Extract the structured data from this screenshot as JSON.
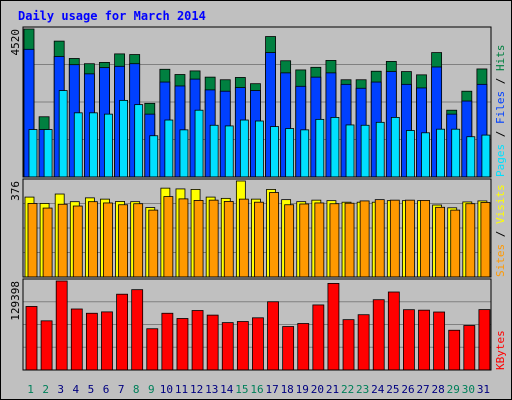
{
  "chart_data": [
    {
      "type": "bar",
      "title": "Daily usage for March 2014",
      "categories": [
        "1",
        "2",
        "3",
        "4",
        "5",
        "6",
        "7",
        "8",
        "9",
        "10",
        "11",
        "12",
        "13",
        "14",
        "15",
        "16",
        "17",
        "18",
        "19",
        "20",
        "21",
        "22",
        "23",
        "24",
        "25",
        "26",
        "27",
        "28",
        "29",
        "30",
        "31"
      ],
      "weekend_days": [
        "1",
        "2",
        "8",
        "9",
        "15",
        "16",
        "22",
        "23",
        "29",
        "30"
      ],
      "ylabel_max": "4520",
      "ylim": [
        0,
        4520
      ],
      "grid": true,
      "series": [
        {
          "name": "Hits",
          "color": "#008040",
          "values": [
            4520,
            1840,
            4150,
            3620,
            3460,
            3500,
            3760,
            3740,
            2250,
            3290,
            3130,
            3240,
            3050,
            2970,
            3040,
            2850,
            4290,
            3550,
            3270,
            3350,
            3560,
            2970,
            2970,
            3230,
            3530,
            3220,
            3120,
            3800,
            2040,
            2620,
            3300
          ]
        },
        {
          "name": "Files",
          "color": "#0040ff",
          "values": [
            3900,
            1450,
            3680,
            3430,
            3150,
            3340,
            3380,
            3460,
            1920,
            2900,
            2780,
            2990,
            2660,
            2620,
            2730,
            2640,
            3800,
            3180,
            2770,
            3050,
            3180,
            2830,
            2710,
            2900,
            3220,
            2830,
            2720,
            3360,
            1920,
            2320,
            2830
          ]
        },
        {
          "name": "Pages",
          "color": "#00e0ff",
          "values": [
            1450,
            1450,
            2640,
            1960,
            1960,
            1920,
            2340,
            2210,
            1260,
            1740,
            1440,
            2040,
            1580,
            1560,
            1740,
            1710,
            1540,
            1480,
            1440,
            1760,
            1820,
            1590,
            1580,
            1670,
            1820,
            1420,
            1350,
            1460,
            1460,
            1230,
            1280
          ]
        }
      ]
    },
    {
      "type": "bar",
      "ylabel_max": "376",
      "ylim": [
        0,
        376
      ],
      "grid": true,
      "series": [
        {
          "name": "Visits",
          "color": "#ffff00",
          "values": [
            313,
            288,
            325,
            295,
            310,
            305,
            296,
            295,
            272,
            348,
            345,
            343,
            313,
            308,
            376,
            305,
            343,
            303,
            295,
            301,
            299,
            293,
            293,
            293,
            299,
            299,
            299,
            282,
            271,
            294,
            298
          ]
        },
        {
          "name": "Sites",
          "color": "#ff9900",
          "values": [
            288,
            270,
            285,
            278,
            295,
            290,
            283,
            287,
            262,
            315,
            306,
            300,
            301,
            296,
            305,
            293,
            331,
            283,
            286,
            290,
            287,
            289,
            298,
            303,
            301,
            301,
            300,
            273,
            262,
            287,
            292
          ]
        }
      ]
    },
    {
      "type": "bar",
      "ylabel_max": "129398",
      "ylim": [
        0,
        129398
      ],
      "grid": true,
      "series": [
        {
          "name": "KBytes",
          "color": "#ff0000",
          "values": [
            92400,
            71500,
            129398,
            88700,
            82500,
            84500,
            110200,
            116800,
            60000,
            82500,
            74900,
            86500,
            79800,
            68900,
            70500,
            75900,
            99200,
            63200,
            67600,
            94600,
            125900,
            73200,
            80400,
            102200,
            113400,
            87700,
            87000,
            84300,
            57800,
            64700,
            87800
          ]
        }
      ]
    }
  ]
}
